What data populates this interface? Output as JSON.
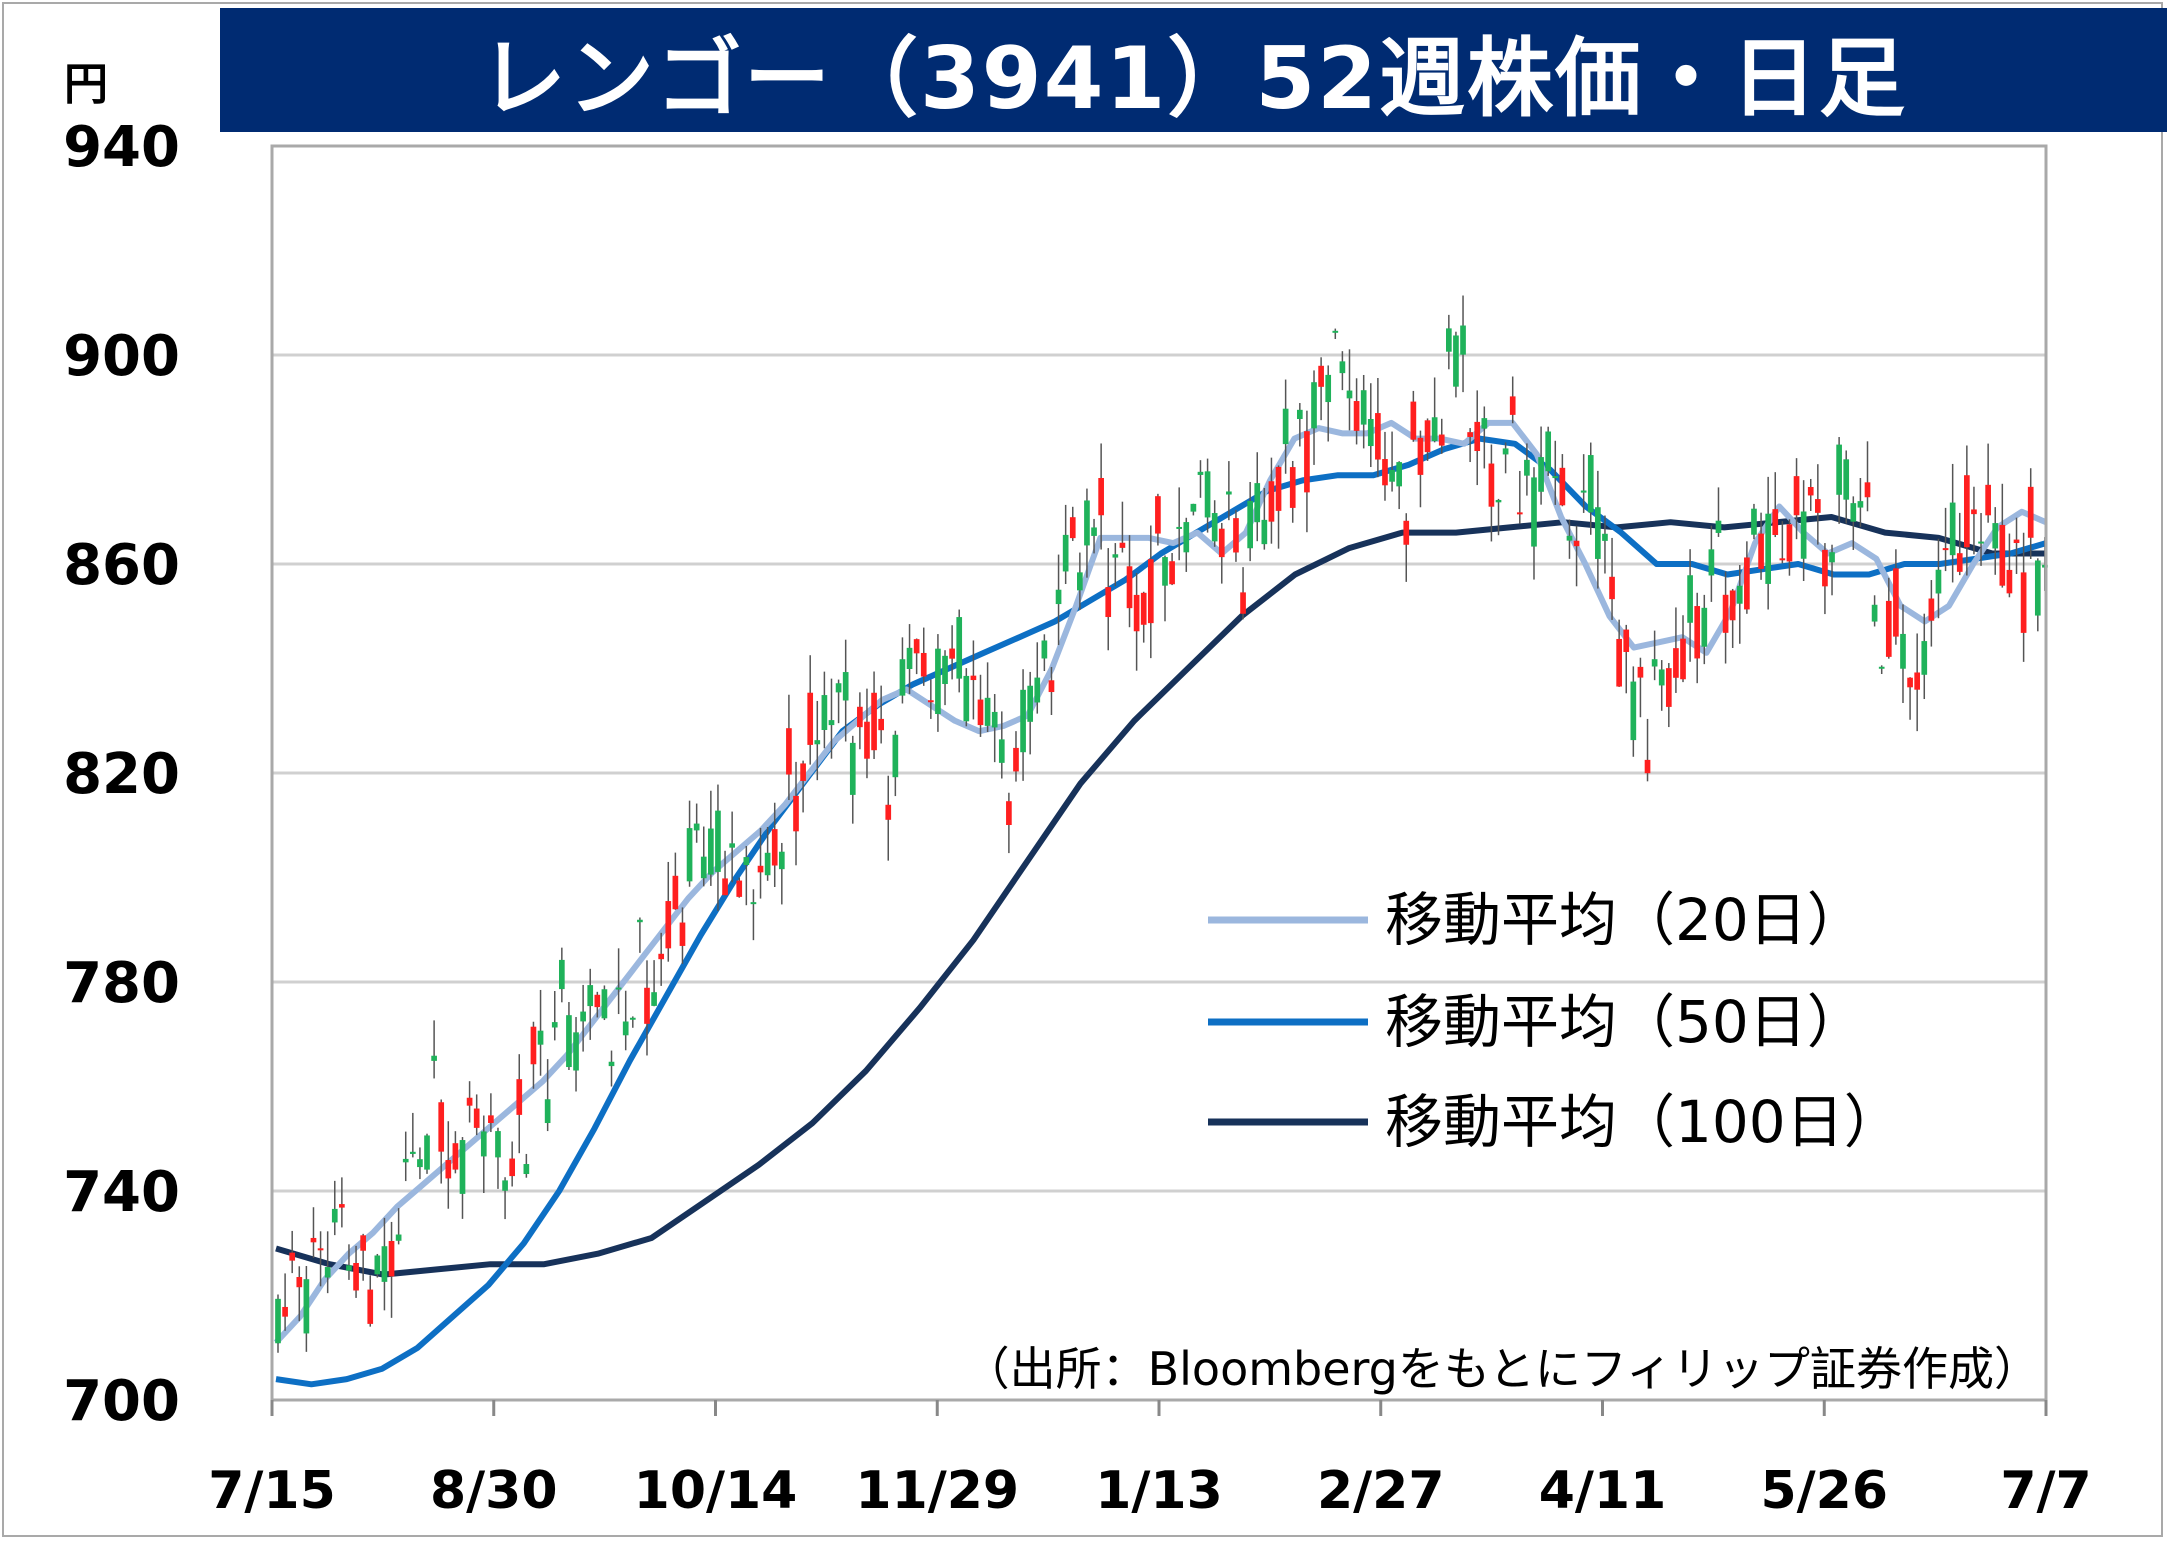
{
  "title": "レンゴー（3941）52週株価・日足",
  "y_unit": "円",
  "source": "（出所：Bloombergをもとにフィリップ証券作成）",
  "legend": [
    {
      "label": "移動平均（20日）",
      "color": "#9bb7de"
    },
    {
      "label": "移動平均（50日）",
      "color": "#0d6fc4"
    },
    {
      "label": "移動平均（100日）",
      "color": "#17325a"
    }
  ],
  "colors": {
    "up": "#ff1f1f",
    "down": "#1fb25a",
    "grid": "#d0d0d0",
    "title_bg": "#002b72"
  },
  "chart_data": {
    "type": "candlestick",
    "y_ticks": [
      "940",
      "900",
      "860",
      "820",
      "780",
      "740",
      "700"
    ],
    "x_ticks": [
      "7/15",
      "8/30",
      "10/14",
      "11/29",
      "1/13",
      "2/27",
      "4/11",
      "5/26",
      "7/7"
    ],
    "ylim": [
      700,
      940
    ],
    "grid": true,
    "legend_position": "middle-right",
    "ma20": [
      711,
      716,
      723,
      728,
      732,
      737,
      741,
      745,
      749,
      753,
      757,
      761,
      766,
      772,
      778,
      784,
      790,
      796,
      801,
      805,
      809,
      814,
      820,
      826,
      830,
      834,
      836,
      833,
      830,
      828,
      829,
      831,
      840,
      852,
      865,
      865,
      865,
      864,
      866,
      862,
      866,
      876,
      884,
      886,
      885,
      885,
      887,
      884,
      884,
      883,
      887,
      887,
      881,
      869,
      860,
      850,
      844,
      845,
      846,
      843,
      851,
      864,
      871,
      866,
      862,
      864,
      861,
      852,
      849,
      852,
      860,
      867,
      870,
      868
    ],
    "ma50": [
      704,
      703,
      704,
      706,
      710,
      716,
      722,
      730,
      740,
      752,
      765,
      777,
      789,
      800,
      810,
      819,
      828,
      833,
      837,
      840,
      843,
      846,
      849,
      853,
      857,
      862,
      866,
      870,
      874,
      876,
      877,
      877,
      879,
      882,
      884,
      883,
      878,
      871,
      866,
      860,
      860,
      858,
      859,
      860,
      858,
      858,
      860,
      860,
      861,
      862,
      864
    ],
    "ma100": [
      729,
      726,
      724,
      725,
      726,
      726,
      728,
      731,
      738,
      745,
      753,
      763,
      775,
      788,
      803,
      818,
      830,
      840,
      850,
      858,
      863,
      866,
      866,
      867,
      868,
      867,
      868,
      867,
      868,
      869,
      866,
      865,
      862,
      862
    ]
  }
}
